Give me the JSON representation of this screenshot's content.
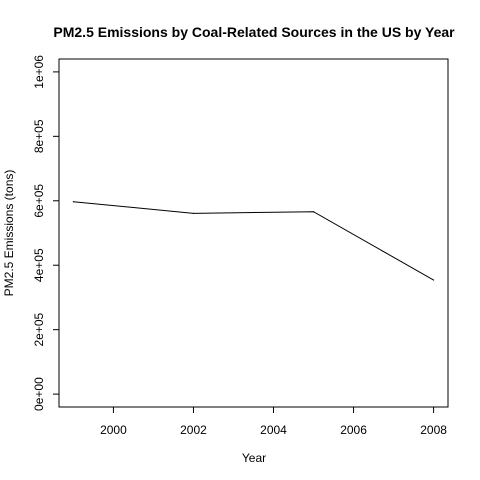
{
  "chart_data": {
    "type": "line",
    "title": "PM2.5 Emissions by Coal-Related Sources in the US by Year",
    "xlabel": "Year",
    "ylabel": "PM2.5 Emissions (tons)",
    "x": [
      1999,
      2002,
      2005,
      2008
    ],
    "series": [
      {
        "values": [
          597000,
          561000,
          566000,
          354000
        ]
      }
    ],
    "xlim": [
      1998.64,
      2008.36
    ],
    "ylim": [
      -40000,
      1040000
    ],
    "xticks": [
      2000,
      2002,
      2004,
      2006,
      2008
    ],
    "xtick_labels": [
      "2000",
      "2002",
      "2004",
      "2006",
      "2008"
    ],
    "yticks": [
      0,
      200000,
      400000,
      600000,
      800000,
      1000000
    ],
    "ytick_labels": [
      "0e+00",
      "2e+05",
      "4e+05",
      "6e+05",
      "8e+05",
      "1e+06"
    ],
    "line_color": "#000000",
    "grid": false,
    "legend": "none"
  }
}
